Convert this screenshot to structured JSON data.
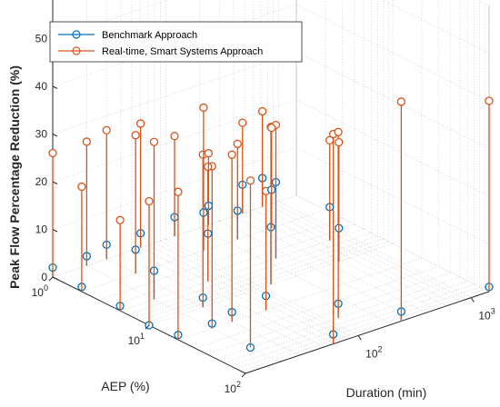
{
  "chart_data": {
    "type": "stem3",
    "title": "",
    "xlabel": "AEP (%)",
    "ylabel": "Duration (min)",
    "zlabel": "Peak Flow Percentage Reduction (%)",
    "z_ticks": [
      "0",
      "10",
      "20",
      "30",
      "40",
      "50",
      "60"
    ],
    "zlim": [
      0,
      60
    ],
    "x_ticks": [
      {
        "base": "10",
        "exp": "0"
      },
      {
        "base": "10",
        "exp": "1"
      },
      {
        "base": "10",
        "exp": "2"
      }
    ],
    "y_ticks": [
      {
        "base": "10",
        "exp": "2"
      },
      {
        "base": "10",
        "exp": "3"
      }
    ],
    "xscale": "log",
    "yscale": "log",
    "grid": "on",
    "legend": {
      "placement": "top-left",
      "entries": [
        {
          "label": "Benchmark Approach",
          "color": "#0072BD"
        },
        {
          "label": "Real-time, Smart Systems Approach",
          "color": "#D95319"
        }
      ]
    },
    "series": [
      {
        "name": "Benchmark Approach",
        "color": "#0072BD",
        "points": [
          {
            "x": 1,
            "y": 10,
            "z": 2
          },
          {
            "x": 1,
            "y": 20,
            "z": 2
          },
          {
            "x": 1,
            "y": 30,
            "z": 3
          },
          {
            "x": 1,
            "y": 60,
            "z": 3
          },
          {
            "x": 1,
            "y": 120,
            "z": 4
          },
          {
            "x": 1,
            "y": 240,
            "z": 4
          },
          {
            "x": 1,
            "y": 480,
            "z": 6
          },
          {
            "x": 1,
            "y": 720,
            "z": 6
          },
          {
            "x": 2,
            "y": 10,
            "z": 1
          },
          {
            "x": 2,
            "y": 30,
            "z": 5
          },
          {
            "x": 2,
            "y": 120,
            "z": 8
          },
          {
            "x": 2,
            "y": 240,
            "z": 6
          },
          {
            "x": 2,
            "y": 480,
            "z": 8
          },
          {
            "x": 5,
            "y": 10,
            "z": 1
          },
          {
            "x": 5,
            "y": 20,
            "z": 6
          },
          {
            "x": 5,
            "y": 60,
            "z": 10
          },
          {
            "x": 5,
            "y": 240,
            "z": 16
          },
          {
            "x": 5,
            "y": 720,
            "z": 7
          },
          {
            "x": 10,
            "y": 10,
            "z": 0
          },
          {
            "x": 10,
            "y": 30,
            "z": 2
          },
          {
            "x": 10,
            "y": 120,
            "z": 12
          },
          {
            "x": 10,
            "y": 480,
            "z": 7
          },
          {
            "x": 20,
            "y": 10,
            "z": 1
          },
          {
            "x": 20,
            "y": 20,
            "z": 1
          },
          {
            "x": 20,
            "y": 30,
            "z": 2
          },
          {
            "x": 20,
            "y": 60,
            "z": 3
          },
          {
            "x": 50,
            "y": 20,
            "z": 0
          },
          {
            "x": 50,
            "y": 120,
            "z": 3
          },
          {
            "x": 100,
            "y": 60,
            "z": 2
          },
          {
            "x": 100,
            "y": 240,
            "z": 2
          },
          {
            "x": 100,
            "y": 1440,
            "z": 1
          }
        ]
      },
      {
        "name": "Real-time, Smart Systems Approach",
        "color": "#D95319",
        "points": [
          {
            "x": 1,
            "y": 10,
            "z": 26
          },
          {
            "x": 1,
            "y": 20,
            "z": 26
          },
          {
            "x": 1,
            "y": 30,
            "z": 27
          },
          {
            "x": 1,
            "y": 60,
            "z": 26
          },
          {
            "x": 1,
            "y": 120,
            "z": 21
          },
          {
            "x": 1,
            "y": 240,
            "z": 15
          },
          {
            "x": 1,
            "y": 480,
            "z": 19
          },
          {
            "x": 1,
            "y": 720,
            "z": 20
          },
          {
            "x": 2,
            "y": 10,
            "z": 22
          },
          {
            "x": 2,
            "y": 30,
            "z": 29
          },
          {
            "x": 2,
            "y": 120,
            "z": 30
          },
          {
            "x": 2,
            "y": 240,
            "z": 20
          },
          {
            "x": 2,
            "y": 480,
            "z": 21
          },
          {
            "x": 5,
            "y": 10,
            "z": 19
          },
          {
            "x": 5,
            "y": 20,
            "z": 33
          },
          {
            "x": 5,
            "y": 60,
            "z": 24
          },
          {
            "x": 5,
            "y": 240,
            "z": 28
          },
          {
            "x": 5,
            "y": 720,
            "z": 21
          },
          {
            "x": 10,
            "y": 10,
            "z": 26
          },
          {
            "x": 10,
            "y": 30,
            "z": 32
          },
          {
            "x": 10,
            "y": 120,
            "z": 33
          },
          {
            "x": 10,
            "y": 480,
            "z": 25
          },
          {
            "x": 20,
            "y": 10,
            "z": 31
          },
          {
            "x": 20,
            "y": 20,
            "z": 34
          },
          {
            "x": 20,
            "y": 30,
            "z": 35
          },
          {
            "x": 20,
            "y": 60,
            "z": 25
          },
          {
            "x": 50,
            "y": 20,
            "z": 35
          },
          {
            "x": 50,
            "y": 120,
            "z": 39
          },
          {
            "x": 100,
            "y": 60,
            "z": 44
          },
          {
            "x": 100,
            "y": 240,
            "z": 46
          },
          {
            "x": 100,
            "y": 1440,
            "z": 40
          }
        ]
      }
    ]
  }
}
